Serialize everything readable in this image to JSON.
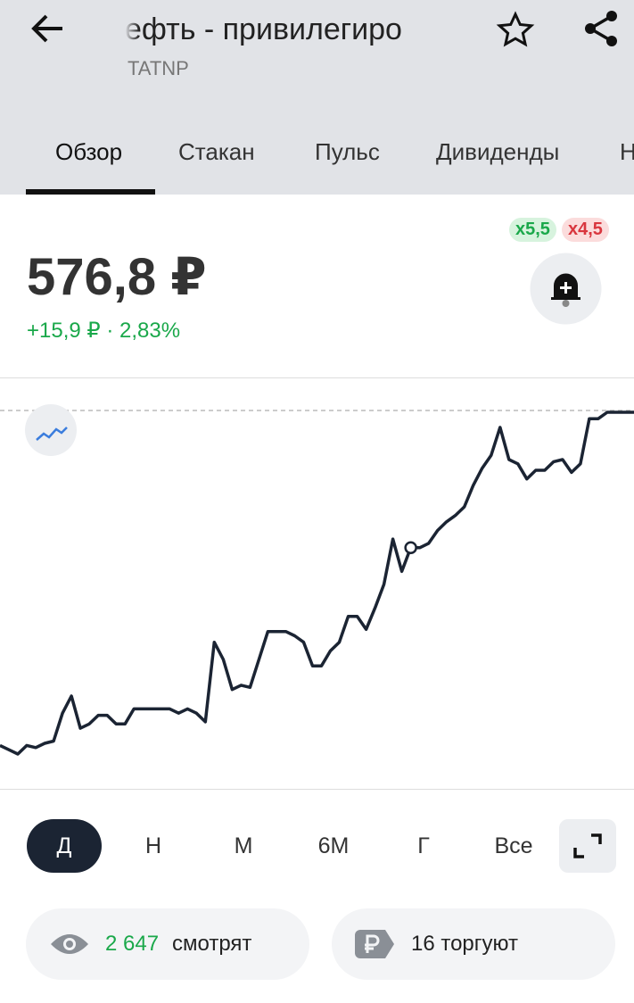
{
  "header": {
    "title": "ефть - привилегиро",
    "ticker": "TATNP"
  },
  "tabs": [
    "Обзор",
    "Стакан",
    "Пульс",
    "Дивиденды",
    "Н"
  ],
  "quote": {
    "price": "576,8 ₽",
    "change": "+15,9 ₽ · 2,83%",
    "leverage_long": "x5,5",
    "leverage_short": "x4,5"
  },
  "chart": {
    "type": "line",
    "color": "#1b2433",
    "values": [
      561.2,
      561.0,
      560.8,
      561.2,
      561.1,
      561.3,
      561.4,
      562.7,
      563.5,
      562.0,
      562.2,
      562.6,
      562.6,
      562.2,
      562.2,
      562.9,
      562.9,
      562.9,
      562.9,
      562.9,
      562.7,
      562.9,
      562.7,
      562.3,
      566.0,
      565.2,
      563.8,
      564.0,
      563.9,
      565.2,
      566.5,
      566.5,
      566.5,
      566.3,
      566.0,
      564.9,
      564.9,
      565.6,
      566.0,
      567.2,
      567.2,
      566.6,
      567.6,
      568.7,
      570.8,
      569.3,
      570.4,
      570.4,
      570.6,
      571.2,
      571.6,
      571.9,
      572.3,
      573.3,
      574.1,
      574.7,
      576.0,
      574.5,
      574.3,
      573.6,
      574.0,
      574.0,
      574.4,
      574.5,
      573.9,
      574.3,
      576.4,
      576.4,
      576.7,
      576.7,
      576.7,
      576.7
    ]
  },
  "periods": [
    "Д",
    "Н",
    "М",
    "6М",
    "Г",
    "Все"
  ],
  "stats": {
    "watching_count": "2 647",
    "watching_label": "смотрят",
    "trading": "16 торгуют"
  }
}
